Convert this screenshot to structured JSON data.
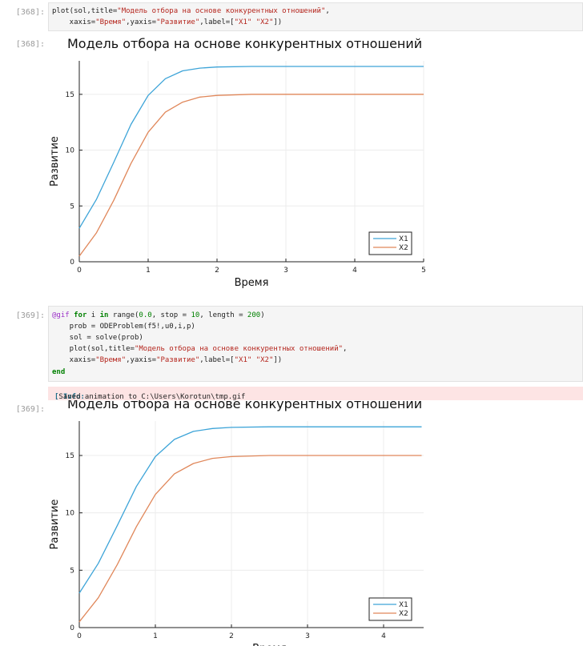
{
  "cells": [
    {
      "in_prompt": "[368]:",
      "out_prompt": "[368]:",
      "code": {
        "l1_a": "plot(sol,title=",
        "l1_str": "\"Модель отбора на основе конкурентных отношений\"",
        "l1_b": ",",
        "l2_a": "    xaxis=",
        "l2_s1": "\"Время\"",
        "l2_b": ",yaxis=",
        "l2_s2": "\"Развитие\"",
        "l2_c": ",label=[",
        "l2_s3": "\"X1\" \"X2\"",
        "l2_d": "])"
      }
    },
    {
      "in_prompt": "[369]:",
      "out_prompt": "[369]:",
      "code": {
        "l1_mac": "@gif",
        "l1_for": "for",
        "l1_a": " i ",
        "l1_in": "in",
        "l1_b": " range(",
        "l1_n1": "0.0",
        "l1_c": ", stop = ",
        "l1_n2": "10",
        "l1_d": ", length = ",
        "l1_n3": "200",
        "l1_e": ")",
        "l2": "    prob = ODEProblem(f5!,u0,i,p)",
        "l3": "    sol = solve(prob)",
        "l4_a": "    plot(sol,title=",
        "l4_str": "\"Модель отбора на основе конкурентных отношений\"",
        "l4_b": ",",
        "l5_a": "    xaxis=",
        "l5_s1": "\"Время\"",
        "l5_b": ",yaxis=",
        "l5_s2": "\"Развитие\"",
        "l5_c": ",label=[",
        "l5_s3": "\"X1\" \"X2\"",
        "l5_d": "])",
        "l6": "end"
      },
      "info_label": "[ Info:",
      "info_text": " Saved animation to C:\\Users\\Korotun\\tmp.gif"
    }
  ],
  "colors": {
    "x1": "#3da4d8",
    "x2": "#e0875a"
  },
  "chart_data": [
    {
      "type": "line",
      "title": "Модель отбора на основе конкурентных отношений",
      "xlabel": "Время",
      "ylabel": "Развитие",
      "xlim": [
        0,
        5
      ],
      "ylim": [
        0,
        18
      ],
      "xticks": [
        0,
        1,
        2,
        3,
        4,
        5
      ],
      "yticks": [
        0,
        5,
        10,
        15
      ],
      "grid": true,
      "legend_position": "bottom-right",
      "series": [
        {
          "name": "X1",
          "x": [
            0,
            0.25,
            0.5,
            0.75,
            1,
            1.25,
            1.5,
            1.75,
            2,
            2.5,
            3,
            3.5,
            4,
            4.5,
            5
          ],
          "y": [
            3.0,
            5.6,
            8.9,
            12.3,
            14.9,
            16.4,
            17.1,
            17.35,
            17.45,
            17.5,
            17.5,
            17.5,
            17.5,
            17.5,
            17.5
          ]
        },
        {
          "name": "X2",
          "x": [
            0,
            0.25,
            0.5,
            0.75,
            1,
            1.25,
            1.5,
            1.75,
            2,
            2.5,
            3,
            3.5,
            4,
            4.5,
            5
          ],
          "y": [
            0.5,
            2.6,
            5.5,
            8.8,
            11.6,
            13.4,
            14.3,
            14.75,
            14.9,
            15.0,
            15.0,
            15.0,
            15.0,
            15.0,
            15.0
          ]
        }
      ]
    },
    {
      "type": "line",
      "title": "Модель отбора на основе конкурентных отношений",
      "xlabel": "Время",
      "ylabel": "Развитие",
      "xlim": [
        0,
        4.5
      ],
      "ylim": [
        0,
        18
      ],
      "xticks": [
        0,
        1,
        2,
        3,
        4
      ],
      "yticks": [
        0,
        5,
        10,
        15
      ],
      "grid": true,
      "legend_position": "bottom-right",
      "series": [
        {
          "name": "X1",
          "x": [
            0,
            0.25,
            0.5,
            0.75,
            1,
            1.25,
            1.5,
            1.75,
            2,
            2.5,
            3,
            3.5,
            4,
            4.5
          ],
          "y": [
            3.0,
            5.6,
            8.9,
            12.3,
            14.9,
            16.4,
            17.1,
            17.35,
            17.45,
            17.5,
            17.5,
            17.5,
            17.5,
            17.5
          ]
        },
        {
          "name": "X2",
          "x": [
            0,
            0.25,
            0.5,
            0.75,
            1,
            1.25,
            1.5,
            1.75,
            2,
            2.5,
            3,
            3.5,
            4,
            4.5
          ],
          "y": [
            0.5,
            2.6,
            5.5,
            8.8,
            11.6,
            13.4,
            14.3,
            14.75,
            14.9,
            15.0,
            15.0,
            15.0,
            15.0,
            15.0
          ]
        }
      ]
    }
  ]
}
